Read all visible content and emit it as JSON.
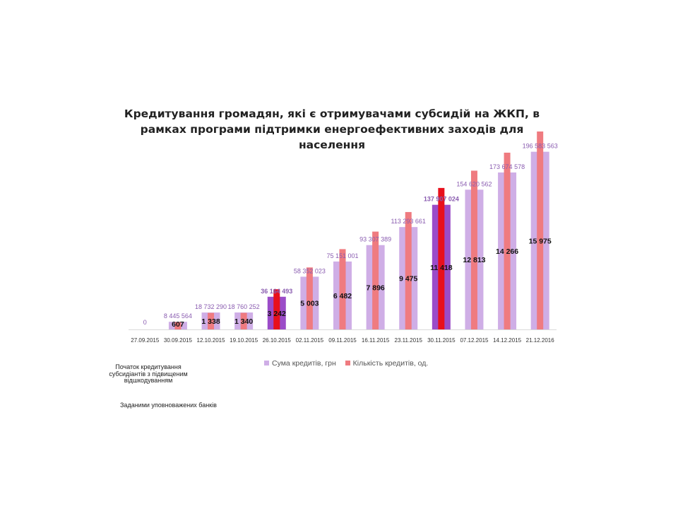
{
  "chart_data": {
    "type": "bar",
    "title": "Кредитування громадян, які є отримувачами субсидій на ЖКП, в рамках програми підтримки енергоефективних заходів для населення",
    "categories": [
      "27.09.2015",
      "30.09.2015",
      "12.10.2015",
      "19.10.2015",
      "26.10.2015",
      "02.11.2015",
      "09.11.2015",
      "16.11.2015",
      "23.11.2015",
      "30.11.2015",
      "07.12.2015",
      "14.12.2015",
      "21.12.2016"
    ],
    "series": [
      {
        "name": "Сума кредитів, грн",
        "values": [
          0,
          8445564,
          18732290,
          18760252,
          36164493,
          58352023,
          75151001,
          93307389,
          113293661,
          137907024,
          154620562,
          173674578,
          196583563
        ],
        "labels": [
          "0",
          "8 445 564",
          "18 732 290",
          "18 760 252",
          "36 164 493",
          "58 352 023",
          "75 151 001",
          "93 307 389",
          "113 293 661",
          "137 907 024",
          "154 620 562",
          "173 674 578",
          "196 583 563"
        ],
        "color": "#cfaee6",
        "highlight_color": "#9b4cc8",
        "highlight_index": [
          4,
          9
        ]
      },
      {
        "name": "Кількість кредитів, од.",
        "values": [
          0,
          607,
          1338,
          1340,
          3242,
          5003,
          6482,
          7896,
          9475,
          11418,
          12813,
          14266,
          15975
        ],
        "labels": [
          "",
          "607",
          "1 338",
          "1 340",
          "3 242",
          "5 003",
          "6 482",
          "7 896",
          "9 475",
          "11 418",
          "12 813",
          "14 266",
          "15 975"
        ],
        "color": "#ef7b80",
        "highlight_color": "#e8101c",
        "highlight_index": [
          4,
          9
        ]
      }
    ],
    "axes": {
      "left": {
        "min": 0,
        "max": 219000000
      },
      "right": {
        "min": 0,
        "max": 15975
      }
    },
    "grid": false,
    "legend": "bottom"
  },
  "notes": {
    "start": "Початок кредитування субсидіантів з підвищеним відшкодуванням",
    "source": "Заданими уповноважених банків"
  },
  "colors": {
    "amount_label": "#8a5cb0",
    "count_label": "#111111",
    "axis": "#d9d9d9"
  }
}
